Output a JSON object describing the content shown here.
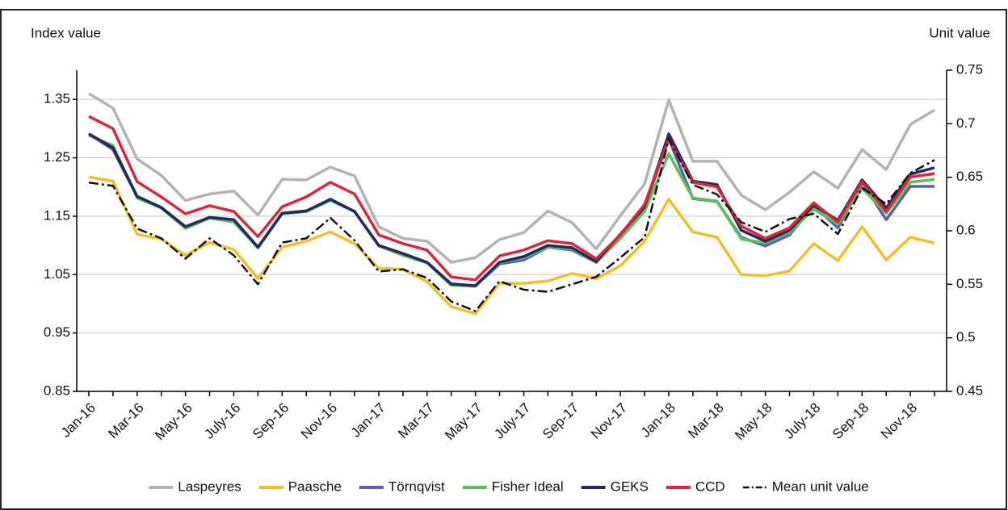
{
  "chart_data": {
    "type": "line",
    "y_label": "Index value",
    "y2_label": "Unit value",
    "categories": [
      "Jan-16",
      null,
      "Mar-16",
      null,
      "May-16",
      null,
      "July-16",
      null,
      "Sep-16",
      null,
      "Nov-16",
      null,
      "Jan-17",
      null,
      "Mar-17",
      null,
      "May-17",
      null,
      "July-17",
      null,
      "Sep-17",
      null,
      "Nov-17",
      null,
      "Jan-18",
      null,
      "Mar-18",
      null,
      "May-18",
      null,
      "July-18",
      null,
      "Sep-18",
      null,
      "Nov-18",
      null
    ],
    "ylim": [
      0.85,
      1.4
    ],
    "yticks": [
      0.85,
      0.95,
      1.05,
      1.15,
      1.25,
      1.35
    ],
    "y2lim": [
      0.45,
      0.75
    ],
    "y2ticks": [
      0.45,
      0.5,
      0.55,
      0.6,
      0.65,
      0.7,
      0.75
    ],
    "grid": true,
    "legend": "bottom",
    "series": [
      {
        "name": "Laspeyres",
        "color": "#b3b3b3",
        "values": [
          1.36,
          1.335,
          1.248,
          1.22,
          1.177,
          1.188,
          1.193,
          1.152,
          1.213,
          1.212,
          1.234,
          1.219,
          1.132,
          1.112,
          1.107,
          1.071,
          1.079,
          1.11,
          1.122,
          1.159,
          1.139,
          1.094,
          1.151,
          1.205,
          1.349,
          1.244,
          1.244,
          1.186,
          1.161,
          1.191,
          1.226,
          1.198,
          1.264,
          1.23,
          1.307,
          1.332
        ]
      },
      {
        "name": "Paasche",
        "color": "#f0bf2a",
        "values": [
          1.217,
          1.21,
          1.119,
          1.111,
          1.083,
          1.105,
          1.093,
          1.043,
          1.097,
          1.107,
          1.123,
          1.103,
          1.061,
          1.059,
          1.038,
          0.995,
          0.983,
          1.035,
          1.035,
          1.039,
          1.052,
          1.043,
          1.065,
          1.107,
          1.179,
          1.123,
          1.114,
          1.05,
          1.048,
          1.056,
          1.103,
          1.074,
          1.132,
          1.075,
          1.114,
          1.104
        ]
      },
      {
        "name": "Törnqvist",
        "color": "#5a5fb0",
        "values": [
          1.291,
          1.264,
          1.183,
          1.165,
          1.13,
          1.147,
          1.141,
          1.096,
          1.155,
          1.158,
          1.179,
          1.158,
          1.099,
          1.085,
          1.07,
          1.032,
          1.03,
          1.068,
          1.075,
          1.097,
          1.092,
          1.071,
          1.114,
          1.166,
          1.282,
          1.18,
          1.175,
          1.114,
          1.099,
          1.118,
          1.168,
          1.13,
          1.208,
          1.144,
          1.201,
          1.201
        ]
      },
      {
        "name": "Fisher Ideal",
        "color": "#5bc05c",
        "values": [
          1.288,
          1.271,
          1.181,
          1.164,
          1.129,
          1.147,
          1.14,
          1.096,
          1.154,
          1.158,
          1.177,
          1.158,
          1.099,
          1.083,
          1.07,
          1.032,
          1.03,
          1.07,
          1.079,
          1.097,
          1.094,
          1.071,
          1.112,
          1.158,
          1.257,
          1.181,
          1.176,
          1.111,
          1.104,
          1.122,
          1.162,
          1.137,
          1.198,
          1.155,
          1.208,
          1.213
        ]
      },
      {
        "name": "GEKS",
        "color": "#27285e",
        "values": [
          1.291,
          1.267,
          1.184,
          1.165,
          1.132,
          1.148,
          1.144,
          1.097,
          1.155,
          1.159,
          1.179,
          1.158,
          1.1,
          1.086,
          1.071,
          1.034,
          1.031,
          1.071,
          1.081,
          1.1,
          1.096,
          1.072,
          1.119,
          1.166,
          1.291,
          1.21,
          1.204,
          1.126,
          1.107,
          1.126,
          1.169,
          1.143,
          1.212,
          1.164,
          1.222,
          1.233
        ]
      },
      {
        "name": "CCD",
        "color": "#d6283a",
        "values": [
          1.321,
          1.3,
          1.209,
          1.183,
          1.154,
          1.168,
          1.158,
          1.115,
          1.166,
          1.183,
          1.208,
          1.188,
          1.118,
          1.103,
          1.092,
          1.046,
          1.041,
          1.082,
          1.092,
          1.108,
          1.103,
          1.077,
          1.118,
          1.17,
          1.282,
          1.208,
          1.2,
          1.133,
          1.112,
          1.13,
          1.173,
          1.14,
          1.209,
          1.158,
          1.217,
          1.223
        ]
      },
      {
        "name": "Mean unit value",
        "color": "#111111",
        "axis": "y2",
        "style": "dashdot",
        "values": [
          0.645,
          0.642,
          0.602,
          0.593,
          0.574,
          0.593,
          0.577,
          0.55,
          0.589,
          0.593,
          0.612,
          0.591,
          0.562,
          0.564,
          0.556,
          0.534,
          0.525,
          0.553,
          0.545,
          0.543,
          0.55,
          0.557,
          0.575,
          0.594,
          0.686,
          0.643,
          0.634,
          0.608,
          0.599,
          0.611,
          0.616,
          0.597,
          0.64,
          0.625,
          0.654,
          0.666
        ]
      }
    ]
  }
}
